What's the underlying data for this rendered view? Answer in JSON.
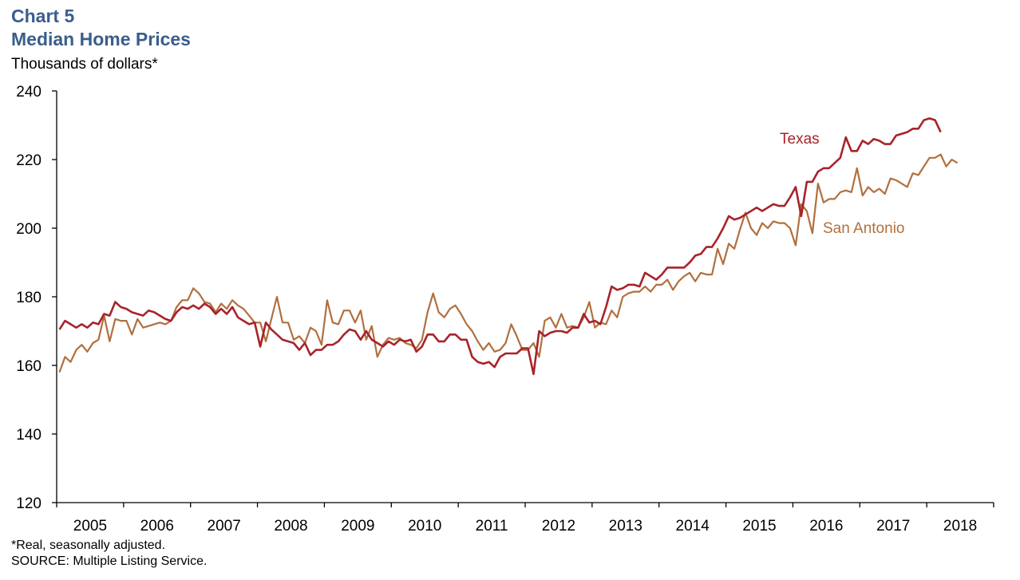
{
  "header": {
    "chart_number": "Chart 5",
    "title": "Median Home Prices",
    "unit_label": "Thousands of dollars*"
  },
  "footer": {
    "note": "*Real, seasonally adjusted.",
    "source": "SOURCE: Multiple Listing Service."
  },
  "colors": {
    "title": "#3a5e8c",
    "texas": "#a8232a",
    "san_antonio": "#b0703f",
    "axis": "#000000"
  },
  "chart_data": {
    "type": "line",
    "title": "Median Home Prices",
    "ylabel": "Thousands of dollars*",
    "ylim": [
      120,
      240
    ],
    "yticks": [
      120,
      140,
      160,
      180,
      200,
      220,
      240
    ],
    "xlim": [
      2005,
      2019
    ],
    "xticks": [
      "2005",
      "2006",
      "2007",
      "2008",
      "2009",
      "2010",
      "2011",
      "2012",
      "2013",
      "2014",
      "2015",
      "2016",
      "2017",
      "2018"
    ],
    "grid": false,
    "legend": "inline labels near line ends",
    "series": [
      {
        "name": "Texas",
        "color": "#a8232a",
        "values": [
          170.5,
          173.0,
          172.0,
          171.0,
          172.0,
          171.0,
          172.5,
          172.0,
          175.0,
          174.5,
          178.5,
          177.0,
          176.5,
          175.5,
          175.0,
          174.5,
          176.0,
          175.5,
          174.5,
          173.5,
          173.0,
          175.5,
          177.0,
          176.5,
          177.5,
          176.5,
          178.0,
          177.0,
          175.0,
          176.5,
          175.0,
          177.0,
          174.0,
          173.0,
          172.0,
          172.5,
          165.5,
          172.5,
          170.5,
          169.0,
          167.5,
          167.0,
          166.5,
          164.5,
          166.5,
          163.0,
          164.5,
          164.5,
          166.0,
          166.0,
          167.0,
          169.0,
          170.5,
          170.0,
          167.5,
          170.0,
          167.5,
          166.5,
          165.5,
          167.0,
          166.0,
          167.5,
          167.0,
          167.5,
          164.0,
          165.5,
          169.0,
          169.0,
          167.0,
          167.0,
          169.0,
          169.0,
          167.5,
          167.5,
          162.5,
          161.0,
          160.5,
          161.0,
          159.5,
          162.5,
          163.5,
          163.5,
          163.5,
          165.0,
          165.0,
          157.5,
          170.0,
          168.5,
          169.5,
          170.0,
          170.0,
          169.5,
          171.0,
          171.0,
          175.0,
          172.5,
          173.0,
          172.0,
          177.0,
          183.0,
          182.0,
          182.5,
          183.5,
          183.5,
          183.0,
          187.0,
          186.0,
          185.0,
          186.5,
          188.5,
          188.5,
          188.5,
          188.5,
          190.0,
          192.0,
          192.5,
          194.5,
          194.5,
          197.0,
          200.0,
          203.5,
          202.5,
          203.0,
          204.0,
          205.0,
          206.0,
          205.0,
          206.0,
          207.0,
          206.5,
          206.5,
          209.0,
          212.0,
          203.5,
          213.5,
          213.5,
          216.5,
          217.5,
          217.5,
          219.0,
          220.5,
          226.5,
          222.5,
          222.5,
          225.5,
          224.5,
          226.0,
          225.5,
          224.5,
          224.5,
          227.0,
          227.5,
          228.0,
          229.0,
          229.0,
          231.5,
          232.0,
          231.5,
          228.0
        ]
      },
      {
        "name": "San Antonio",
        "color": "#b0703f",
        "values": [
          158.0,
          162.5,
          161.0,
          164.5,
          166.0,
          164.0,
          166.5,
          167.5,
          174.5,
          167.0,
          173.5,
          173.0,
          173.0,
          169.0,
          173.5,
          171.0,
          171.5,
          172.0,
          172.5,
          172.0,
          173.0,
          177.0,
          179.0,
          179.0,
          182.5,
          181.0,
          178.5,
          178.0,
          175.5,
          178.0,
          176.5,
          179.0,
          177.5,
          176.5,
          174.5,
          172.5,
          172.5,
          167.0,
          173.5,
          180.0,
          172.5,
          172.5,
          167.5,
          168.5,
          166.5,
          171.0,
          170.0,
          166.0,
          179.0,
          172.5,
          172.0,
          176.0,
          176.0,
          172.5,
          176.0,
          167.5,
          171.5,
          162.5,
          166.0,
          168.0,
          167.5,
          168.0,
          166.5,
          166.0,
          165.0,
          167.5,
          175.5,
          181.0,
          175.5,
          174.0,
          176.5,
          177.5,
          175.0,
          172.0,
          170.0,
          167.0,
          164.5,
          166.5,
          164.0,
          164.5,
          166.5,
          172.0,
          168.5,
          164.5,
          164.5,
          166.5,
          162.5,
          173.0,
          174.0,
          171.0,
          175.0,
          171.0,
          171.5,
          171.0,
          174.0,
          178.5,
          171.0,
          172.5,
          172.0,
          176.0,
          174.0,
          180.0,
          181.0,
          181.5,
          181.5,
          183.0,
          181.5,
          183.5,
          183.5,
          185.0,
          182.0,
          184.5,
          186.0,
          187.0,
          184.5,
          187.0,
          186.5,
          186.5,
          194.0,
          189.5,
          195.5,
          194.0,
          199.5,
          204.5,
          200.0,
          198.0,
          201.5,
          200.0,
          202.0,
          201.5,
          201.5,
          200.0,
          195.0,
          207.0,
          205.0,
          198.5,
          213.0,
          207.5,
          208.5,
          208.5,
          210.5,
          211.0,
          210.5,
          217.5,
          209.5,
          212.0,
          210.5,
          211.5,
          210.0,
          214.5,
          214.0,
          213.0,
          212.0,
          216.0,
          215.5,
          218.0,
          220.5,
          220.5,
          221.5,
          218.0,
          220.0,
          219.0
        ]
      }
    ],
    "annotations": [
      "Texas",
      "San Antonio"
    ]
  }
}
